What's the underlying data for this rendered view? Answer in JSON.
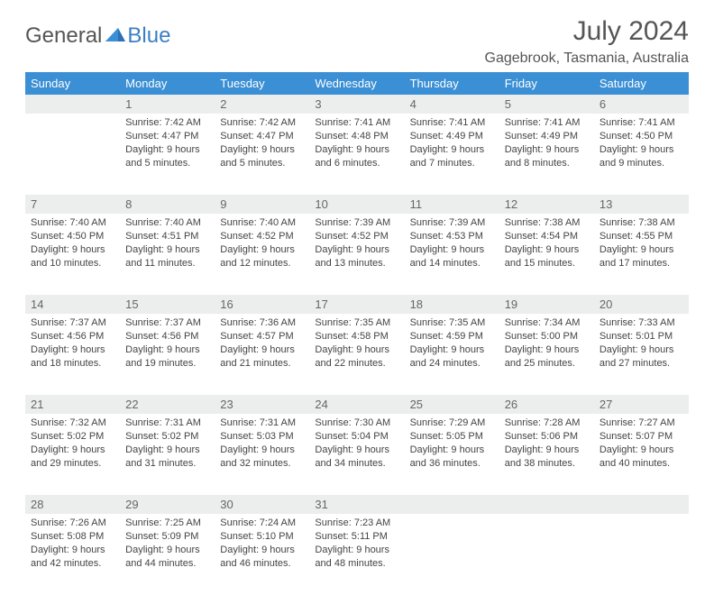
{
  "logo": {
    "part1": "General",
    "part2": "Blue"
  },
  "title": "July 2024",
  "location": "Gagebrook, Tasmania, Australia",
  "colors": {
    "header_bg": "#3b8fd4",
    "header_fg": "#ffffff",
    "daynum_bg": "#eceded",
    "daynum_fg": "#666666",
    "text": "#444444",
    "title": "#555555",
    "logo_gray": "#555555",
    "logo_blue": "#3b7fc4"
  },
  "weekdays": [
    "Sunday",
    "Monday",
    "Tuesday",
    "Wednesday",
    "Thursday",
    "Friday",
    "Saturday"
  ],
  "weeks": [
    {
      "nums": [
        "",
        "1",
        "2",
        "3",
        "4",
        "5",
        "6"
      ],
      "data": [
        null,
        {
          "sunrise": "7:42 AM",
          "sunset": "4:47 PM",
          "daylight": "9 hours and 5 minutes."
        },
        {
          "sunrise": "7:42 AM",
          "sunset": "4:47 PM",
          "daylight": "9 hours and 5 minutes."
        },
        {
          "sunrise": "7:41 AM",
          "sunset": "4:48 PM",
          "daylight": "9 hours and 6 minutes."
        },
        {
          "sunrise": "7:41 AM",
          "sunset": "4:49 PM",
          "daylight": "9 hours and 7 minutes."
        },
        {
          "sunrise": "7:41 AM",
          "sunset": "4:49 PM",
          "daylight": "9 hours and 8 minutes."
        },
        {
          "sunrise": "7:41 AM",
          "sunset": "4:50 PM",
          "daylight": "9 hours and 9 minutes."
        }
      ]
    },
    {
      "nums": [
        "7",
        "8",
        "9",
        "10",
        "11",
        "12",
        "13"
      ],
      "data": [
        {
          "sunrise": "7:40 AM",
          "sunset": "4:50 PM",
          "daylight": "9 hours and 10 minutes."
        },
        {
          "sunrise": "7:40 AM",
          "sunset": "4:51 PM",
          "daylight": "9 hours and 11 minutes."
        },
        {
          "sunrise": "7:40 AM",
          "sunset": "4:52 PM",
          "daylight": "9 hours and 12 minutes."
        },
        {
          "sunrise": "7:39 AM",
          "sunset": "4:52 PM",
          "daylight": "9 hours and 13 minutes."
        },
        {
          "sunrise": "7:39 AM",
          "sunset": "4:53 PM",
          "daylight": "9 hours and 14 minutes."
        },
        {
          "sunrise": "7:38 AM",
          "sunset": "4:54 PM",
          "daylight": "9 hours and 15 minutes."
        },
        {
          "sunrise": "7:38 AM",
          "sunset": "4:55 PM",
          "daylight": "9 hours and 17 minutes."
        }
      ]
    },
    {
      "nums": [
        "14",
        "15",
        "16",
        "17",
        "18",
        "19",
        "20"
      ],
      "data": [
        {
          "sunrise": "7:37 AM",
          "sunset": "4:56 PM",
          "daylight": "9 hours and 18 minutes."
        },
        {
          "sunrise": "7:37 AM",
          "sunset": "4:56 PM",
          "daylight": "9 hours and 19 minutes."
        },
        {
          "sunrise": "7:36 AM",
          "sunset": "4:57 PM",
          "daylight": "9 hours and 21 minutes."
        },
        {
          "sunrise": "7:35 AM",
          "sunset": "4:58 PM",
          "daylight": "9 hours and 22 minutes."
        },
        {
          "sunrise": "7:35 AM",
          "sunset": "4:59 PM",
          "daylight": "9 hours and 24 minutes."
        },
        {
          "sunrise": "7:34 AM",
          "sunset": "5:00 PM",
          "daylight": "9 hours and 25 minutes."
        },
        {
          "sunrise": "7:33 AM",
          "sunset": "5:01 PM",
          "daylight": "9 hours and 27 minutes."
        }
      ]
    },
    {
      "nums": [
        "21",
        "22",
        "23",
        "24",
        "25",
        "26",
        "27"
      ],
      "data": [
        {
          "sunrise": "7:32 AM",
          "sunset": "5:02 PM",
          "daylight": "9 hours and 29 minutes."
        },
        {
          "sunrise": "7:31 AM",
          "sunset": "5:02 PM",
          "daylight": "9 hours and 31 minutes."
        },
        {
          "sunrise": "7:31 AM",
          "sunset": "5:03 PM",
          "daylight": "9 hours and 32 minutes."
        },
        {
          "sunrise": "7:30 AM",
          "sunset": "5:04 PM",
          "daylight": "9 hours and 34 minutes."
        },
        {
          "sunrise": "7:29 AM",
          "sunset": "5:05 PM",
          "daylight": "9 hours and 36 minutes."
        },
        {
          "sunrise": "7:28 AM",
          "sunset": "5:06 PM",
          "daylight": "9 hours and 38 minutes."
        },
        {
          "sunrise": "7:27 AM",
          "sunset": "5:07 PM",
          "daylight": "9 hours and 40 minutes."
        }
      ]
    },
    {
      "nums": [
        "28",
        "29",
        "30",
        "31",
        "",
        "",
        ""
      ],
      "data": [
        {
          "sunrise": "7:26 AM",
          "sunset": "5:08 PM",
          "daylight": "9 hours and 42 minutes."
        },
        {
          "sunrise": "7:25 AM",
          "sunset": "5:09 PM",
          "daylight": "9 hours and 44 minutes."
        },
        {
          "sunrise": "7:24 AM",
          "sunset": "5:10 PM",
          "daylight": "9 hours and 46 minutes."
        },
        {
          "sunrise": "7:23 AM",
          "sunset": "5:11 PM",
          "daylight": "9 hours and 48 minutes."
        },
        null,
        null,
        null
      ]
    }
  ],
  "labels": {
    "sunrise": "Sunrise:",
    "sunset": "Sunset:",
    "daylight": "Daylight:"
  }
}
